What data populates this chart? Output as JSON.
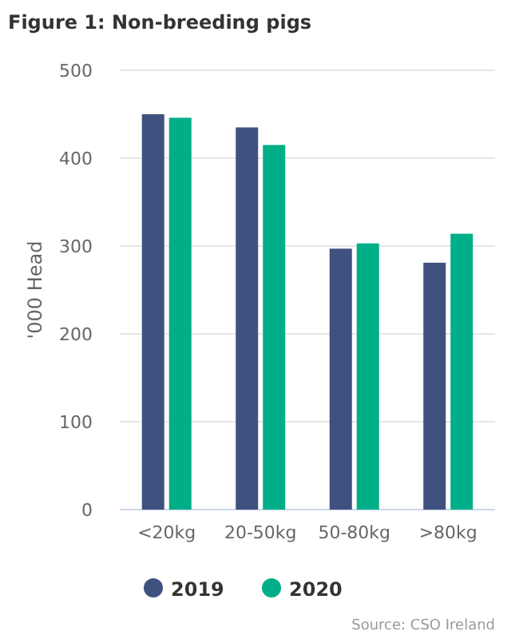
{
  "chart_data": {
    "type": "bar",
    "title": "Figure 1: Non-breeding pigs",
    "ylabel": "'000 Head",
    "categories": [
      "<20kg",
      "20-50kg",
      "50-80kg",
      ">80kg"
    ],
    "series": [
      {
        "name": "2019",
        "color": "#3f527f",
        "values": [
          450,
          435,
          297,
          281
        ]
      },
      {
        "name": "2020",
        "color": "#00ae88",
        "values": [
          446,
          415,
          303,
          314
        ]
      }
    ],
    "ylim": [
      0,
      500
    ],
    "yticks": [
      0,
      100,
      200,
      300,
      400,
      500
    ],
    "grid": "y",
    "legend": "bottom",
    "annotations": [
      "Source: CSO Ireland"
    ]
  }
}
